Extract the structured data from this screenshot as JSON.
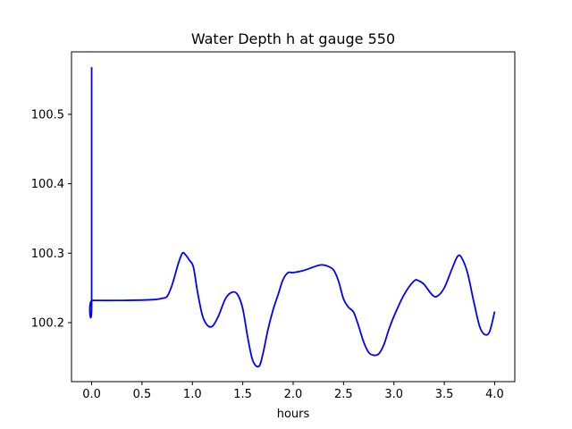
{
  "chart_data": {
    "type": "line",
    "title": "Water Depth h at gauge 550",
    "xlabel": "hours",
    "ylabel": "",
    "xlim": [
      -0.2,
      4.2
    ],
    "ylim": [
      100.115,
      100.59
    ],
    "grid": false,
    "xticks": [
      0.0,
      0.5,
      1.0,
      1.5,
      2.0,
      2.5,
      3.0,
      3.5,
      4.0
    ],
    "xtick_labels": [
      "0.0",
      "0.5",
      "1.0",
      "1.5",
      "2.0",
      "2.5",
      "3.0",
      "3.5",
      "4.0"
    ],
    "yticks": [
      100.2,
      100.3,
      100.4,
      100.5
    ],
    "ytick_labels": [
      "100.2",
      "100.3",
      "100.4",
      "100.5"
    ],
    "series": [
      {
        "color": "#0000ff",
        "x": [
          0,
          0,
          0.005,
          0.3,
          0.6,
          0.7,
          0.75,
          0.8,
          0.86,
          0.9,
          0.93,
          0.97,
          1.01,
          1.05,
          1.1,
          1.15,
          1.2,
          1.26,
          1.33,
          1.4,
          1.45,
          1.5,
          1.55,
          1.6,
          1.66,
          1.7,
          1.75,
          1.8,
          1.85,
          1.9,
          1.95,
          2.0,
          2.1,
          2.2,
          2.27,
          2.33,
          2.4,
          2.45,
          2.5,
          2.55,
          2.6,
          2.65,
          2.7,
          2.75,
          2.8,
          2.85,
          2.9,
          2.95,
          3.0,
          3.1,
          3.2,
          3.25,
          3.3,
          3.38,
          3.43,
          3.5,
          3.57,
          3.63,
          3.67,
          3.73,
          3.79,
          3.85,
          3.9,
          3.95,
          4.0
        ],
        "y": [
          100.568,
          100.232,
          100.232,
          100.232,
          100.233,
          100.235,
          100.238,
          100.255,
          100.285,
          100.3,
          100.298,
          100.29,
          100.28,
          100.245,
          100.21,
          100.196,
          100.195,
          100.21,
          100.235,
          100.244,
          100.24,
          100.22,
          100.178,
          100.145,
          100.137,
          100.155,
          100.19,
          100.218,
          100.24,
          100.262,
          100.272,
          100.272,
          100.275,
          100.28,
          100.283,
          100.282,
          100.276,
          100.26,
          100.234,
          100.222,
          100.215,
          100.195,
          100.172,
          100.157,
          100.153,
          100.155,
          100.168,
          100.19,
          100.209,
          100.24,
          100.26,
          100.26,
          100.255,
          100.24,
          100.238,
          100.25,
          100.275,
          100.295,
          100.294,
          100.272,
          100.232,
          100.195,
          100.183,
          100.187,
          100.216
        ]
      }
    ]
  }
}
